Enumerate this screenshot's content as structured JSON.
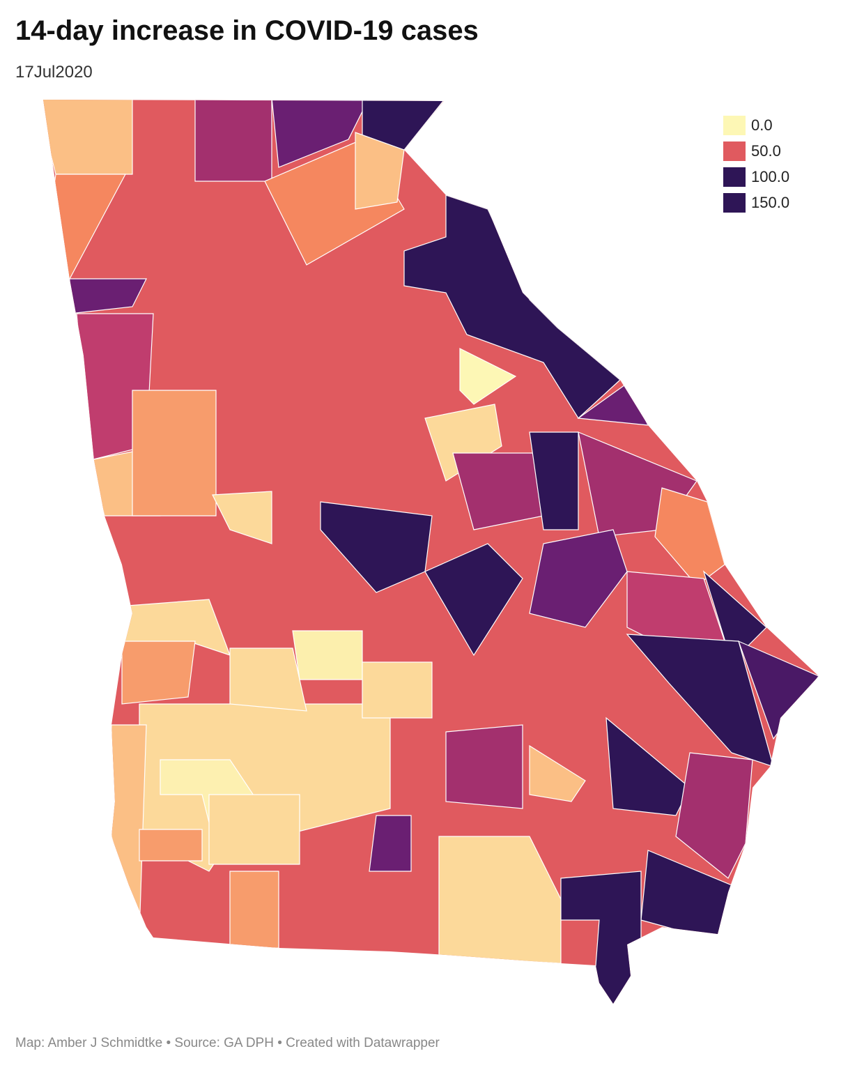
{
  "header": {
    "title": "14-day increase in COVID-19 cases",
    "subtitle": "17Jul2020"
  },
  "legend": {
    "items": [
      {
        "value": 0,
        "label": "0.0",
        "color": "#fdf7b5"
      },
      {
        "value": 50,
        "label": "50.0",
        "color": "#e05a5f"
      },
      {
        "value": 100,
        "label": "100.0",
        "color": "#2e1556"
      },
      {
        "value": 150,
        "label": "150.0",
        "color": "#2e1556"
      }
    ]
  },
  "footer": "Map: Amber J Schmidtke • Source: GA DPH • Created with Datawrapper"
}
